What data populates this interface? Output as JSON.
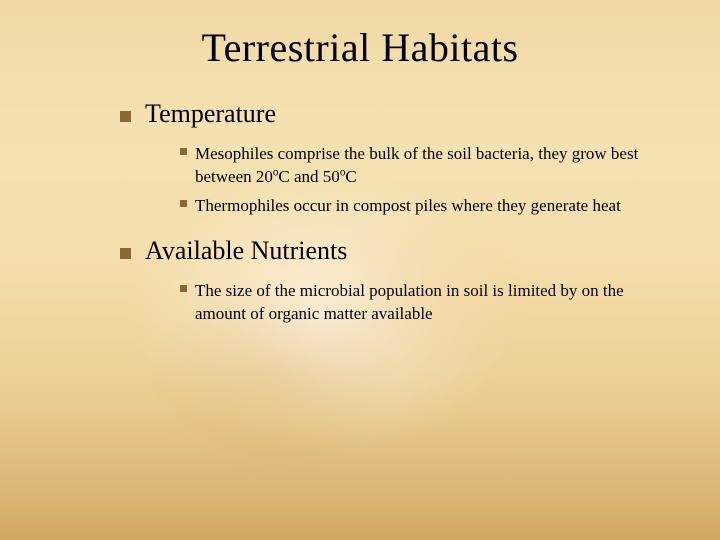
{
  "slide": {
    "title": "Terrestrial Habitats",
    "bullet_color": "#8a6a2e",
    "title_fontsize": 40,
    "level1_fontsize": 26,
    "level2_fontsize": 17,
    "sections": [
      {
        "heading": "Temperature",
        "items": [
          "Mesophiles comprise the bulk of the soil bacteria, they grow best between 20oC and 50oC",
          "Thermophiles occur in compost piles where they generate heat"
        ]
      },
      {
        "heading": "Available Nutrients",
        "items": [
          "The size of the microbial population in soil is limited by on the amount of organic matter available"
        ]
      }
    ]
  }
}
